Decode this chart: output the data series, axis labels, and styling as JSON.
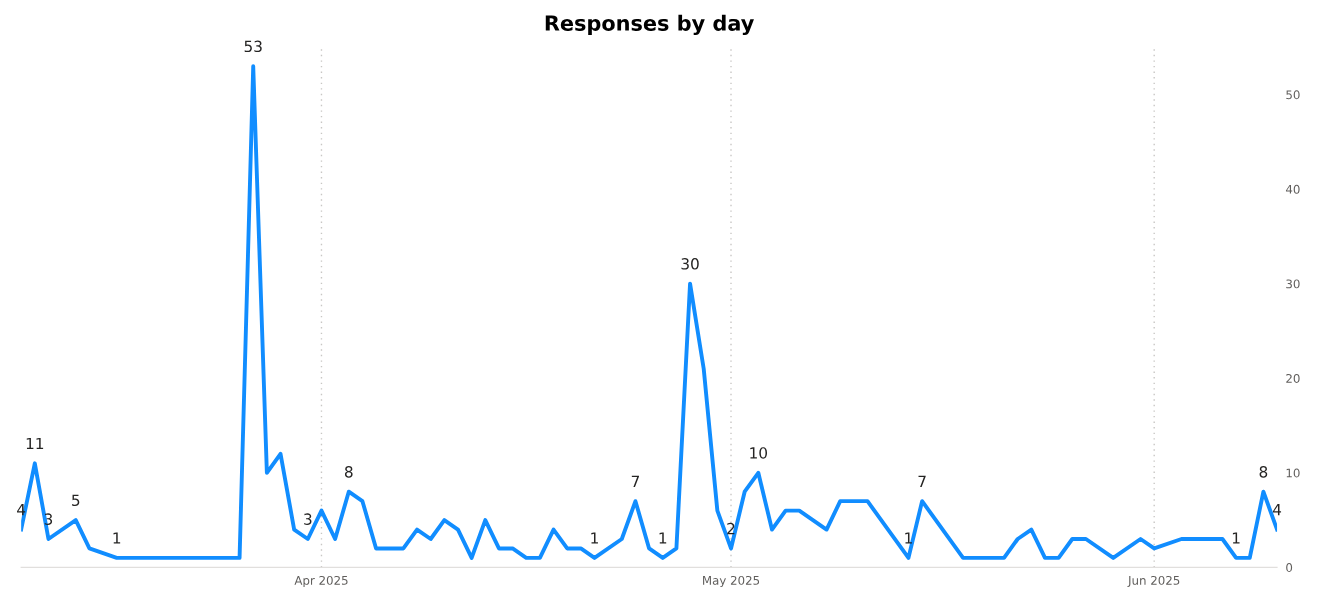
{
  "chart_data": {
    "type": "line",
    "title": "Responses by day",
    "x": [
      "2025-03-10",
      "2025-03-11",
      "2025-03-12",
      "2025-03-14",
      "2025-03-15",
      "2025-03-17",
      "2025-03-26",
      "2025-03-27",
      "2025-03-28",
      "2025-03-29",
      "2025-03-30",
      "2025-03-31",
      "2025-04-01",
      "2025-04-02",
      "2025-04-03",
      "2025-04-04",
      "2025-04-05",
      "2025-04-07",
      "2025-04-08",
      "2025-04-09",
      "2025-04-10",
      "2025-04-11",
      "2025-04-12",
      "2025-04-13",
      "2025-04-14",
      "2025-04-15",
      "2025-04-16",
      "2025-04-17",
      "2025-04-18",
      "2025-04-19",
      "2025-04-20",
      "2025-04-21",
      "2025-04-23",
      "2025-04-24",
      "2025-04-25",
      "2025-04-26",
      "2025-04-27",
      "2025-04-28",
      "2025-04-29",
      "2025-04-30",
      "2025-05-01",
      "2025-05-02",
      "2025-05-03",
      "2025-05-04",
      "2025-05-05",
      "2025-05-06",
      "2025-05-08",
      "2025-05-09",
      "2025-05-11",
      "2025-05-14",
      "2025-05-15",
      "2025-05-18",
      "2025-05-21",
      "2025-05-22",
      "2025-05-23",
      "2025-05-24",
      "2025-05-25",
      "2025-05-26",
      "2025-05-27",
      "2025-05-29",
      "2025-05-31",
      "2025-06-01",
      "2025-06-03",
      "2025-06-06",
      "2025-06-07",
      "2025-06-08",
      "2025-06-09",
      "2025-06-10"
    ],
    "series": [
      {
        "color": "#118dff",
        "values": [
          4,
          11,
          3,
          5,
          2,
          1,
          1,
          53,
          10,
          12,
          4,
          3,
          6,
          3,
          8,
          7,
          2,
          2,
          4,
          3,
          5,
          4,
          1,
          5,
          2,
          2,
          1,
          1,
          4,
          2,
          2,
          1,
          3,
          7,
          2,
          1,
          2,
          30,
          21,
          6,
          2,
          8,
          10,
          4,
          6,
          6,
          4,
          7,
          7,
          1,
          7,
          1,
          1,
          3,
          4,
          1,
          1,
          3,
          3,
          1,
          3,
          2,
          3,
          3,
          1,
          1,
          8,
          4
        ],
        "value_labels": [
          "4",
          "11",
          "3",
          "5",
          null,
          "1",
          null,
          "53",
          null,
          null,
          null,
          "3",
          null,
          null,
          "8",
          null,
          null,
          null,
          null,
          null,
          null,
          null,
          null,
          null,
          null,
          null,
          null,
          null,
          null,
          null,
          null,
          "1",
          null,
          "7",
          null,
          "1",
          null,
          "30",
          null,
          null,
          "2",
          null,
          "10",
          null,
          null,
          null,
          null,
          null,
          null,
          "1",
          "7",
          null,
          null,
          null,
          null,
          null,
          null,
          null,
          null,
          null,
          null,
          null,
          null,
          null,
          "1",
          null,
          "8",
          "4"
        ]
      }
    ],
    "xticks": [
      {
        "value": "2025-04-01",
        "label": "Apr 2025"
      },
      {
        "value": "2025-05-01",
        "label": "May 2025"
      },
      {
        "value": "2025-06-01",
        "label": "Jun 2025"
      }
    ],
    "xlim": [
      "2025-03-10",
      "2025-06-10"
    ],
    "ylim": [
      0,
      55
    ],
    "yticks": [
      0,
      10,
      20,
      30,
      40,
      50
    ],
    "grid": "x",
    "marker": "none",
    "line_style": "solid",
    "legend": false
  }
}
